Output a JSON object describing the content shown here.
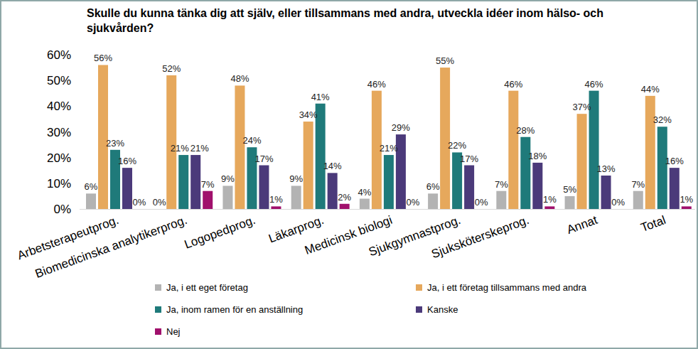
{
  "chart_data": {
    "type": "bar",
    "title": "Skulle du kunna tänka dig att själv, eller tillsammans med andra, utveckla idéer inom hälso- och sjukvården?",
    "categories": [
      "Arbetsterapeutprog.",
      "Biomedicinska analytikerprog.",
      "Logopedprog.",
      "Läkarprog.",
      "Medicinsk biologi",
      "Sjukgymnastprog.",
      "Sjuksköterskeprog.",
      "Annat",
      "Total"
    ],
    "series": [
      {
        "name": "Ja, i ett eget företag",
        "color": "#b3b3b3",
        "values": [
          6,
          0,
          9,
          9,
          4,
          6,
          7,
          5,
          7
        ],
        "value_labels": [
          "6%",
          "0%",
          "9%",
          "9%",
          "4%",
          "6%",
          "7%",
          "5%",
          "7%"
        ]
      },
      {
        "name": "Ja, i ett företag tillsammans med andra",
        "color": "#e6a85c",
        "values": [
          56,
          52,
          48,
          34,
          46,
          55,
          46,
          37,
          44
        ],
        "value_labels": [
          "56%",
          "52%",
          "48%",
          "34%",
          "46%",
          "55%",
          "46%",
          "37%",
          "44%"
        ]
      },
      {
        "name": "Ja, inom ramen för en anställning",
        "color": "#1f7a7a",
        "values": [
          23,
          21,
          24,
          41,
          21,
          22,
          28,
          46,
          32
        ],
        "value_labels": [
          "23%",
          "21%",
          "24%",
          "41%",
          "21%",
          "22%",
          "28%",
          "46%",
          "32%"
        ]
      },
      {
        "name": "Kanske",
        "color": "#4b3a7a",
        "values": [
          16,
          21,
          17,
          14,
          29,
          17,
          18,
          13,
          16
        ],
        "value_labels": [
          "16%",
          "21%",
          "17%",
          "14%",
          "29%",
          "17%",
          "18%",
          "13%",
          "16%"
        ]
      },
      {
        "name": "Nej",
        "color": "#a0106c",
        "values": [
          0,
          7,
          1,
          2,
          0,
          0,
          1,
          0,
          1
        ],
        "value_labels": [
          "0%",
          "7%",
          "1%",
          "2%",
          "0%",
          "0%",
          "1%",
          "0%",
          "1%"
        ]
      }
    ],
    "ylim": [
      0,
      60
    ],
    "yticks": [
      {
        "value": 0,
        "label": "0%"
      },
      {
        "value": 10,
        "label": "10%"
      },
      {
        "value": 20,
        "label": "20%"
      },
      {
        "value": 30,
        "label": "30%"
      },
      {
        "value": 40,
        "label": "40%"
      },
      {
        "value": 50,
        "label": "50%"
      },
      {
        "value": 60,
        "label": "60%"
      }
    ],
    "grid": false,
    "legend": "bottom",
    "data_labels": true
  }
}
